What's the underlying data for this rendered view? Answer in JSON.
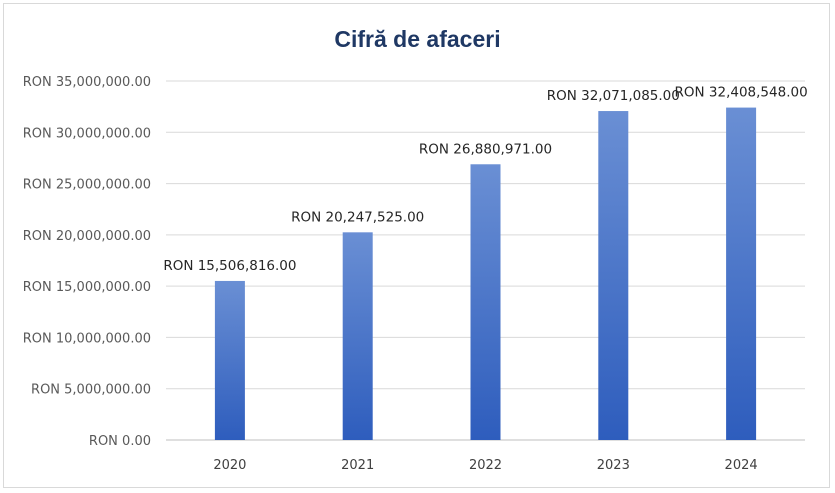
{
  "chart_data": {
    "type": "bar",
    "title": "Cifră de afaceri",
    "xlabel": "",
    "ylabel": "",
    "categories": [
      "2020",
      "2021",
      "2022",
      "2023",
      "2024"
    ],
    "values": [
      15506816.0,
      20247525.0,
      26880971.0,
      32071085.0,
      32408548.0
    ],
    "data_labels": [
      "RON 15,506,816.00",
      "RON 20,247,525.00",
      "RON 26,880,971.00",
      "RON 32,071,085.00",
      "RON 32,408,548.00"
    ],
    "ylim": [
      0,
      35000000
    ],
    "y_ticks": [
      0,
      5000000,
      10000000,
      15000000,
      20000000,
      25000000,
      30000000,
      35000000
    ],
    "y_tick_labels": [
      "RON 0.00",
      "RON 5,000,000.00",
      "RON 10,000,000.00",
      "RON 15,000,000.00",
      "RON 20,000,000.00",
      "RON 25,000,000.00",
      "RON 30,000,000.00",
      "RON 35,000,000.00"
    ],
    "grid": true,
    "legend": "none",
    "colors": {
      "bar_top": "#6a8fd4",
      "bar_bottom": "#2e5dbd",
      "grid": "#d9d9d9",
      "title": "#1f3864"
    }
  }
}
